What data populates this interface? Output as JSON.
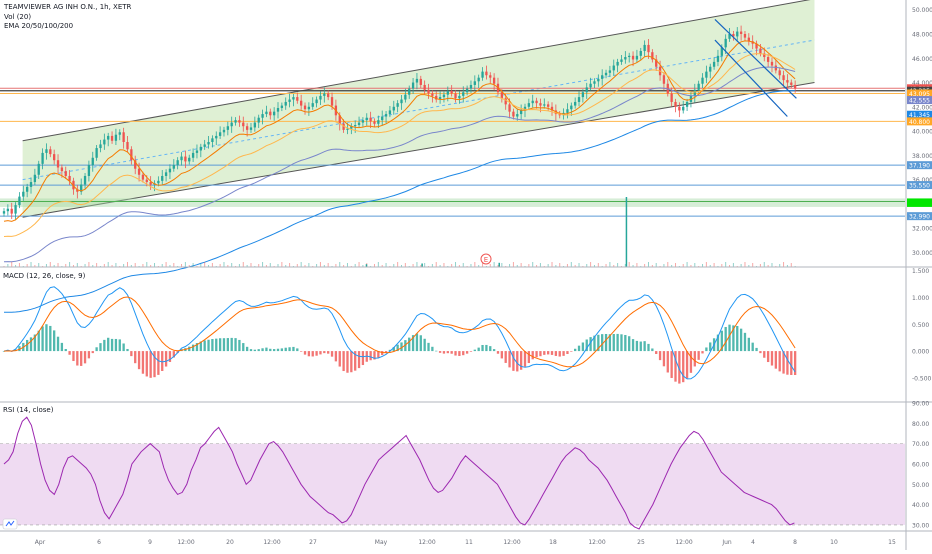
{
  "header": {
    "title": "TEAMVIEWER AG INH O.N., 1h, XETR",
    "vol_label": "Vol (20)",
    "ema_label": "EMA 20/50/100/200"
  },
  "colors": {
    "candle_up": "#26a69a",
    "candle_down": "#ef5350",
    "channel_fill": "#c5e4b0",
    "ema20": "#f57c00",
    "ema50": "#ffb74d",
    "ema100": "#7986cb",
    "ema200": "#1e88e5",
    "channel_mid": "#64b5f6",
    "flag_lines": "#1565c0",
    "hline_red": "#e57373",
    "hline_black": "#424242",
    "hline_orange": "#ffb74d",
    "hline_blue": "#5c9bd6",
    "hline_green": "#4caf50",
    "macd_line": "#2196f3",
    "signal_line": "#ff6d00",
    "rsi_line": "#9c27b0",
    "rsi_band": "#e1bee7"
  },
  "markers": {
    "earnings_glyph": "E"
  },
  "chart_data": [
    {
      "type": "candlestick",
      "name": "price",
      "y_ticks": [
        "50.000",
        "48.000",
        "46.000",
        "44.000",
        "42.000",
        "40.000",
        "38.000",
        "36.000",
        "34.000",
        "32.000",
        "30.000"
      ],
      "ylim": [
        28.8,
        50.8
      ],
      "x_labels": [
        "Apr",
        "6",
        "9",
        "12:00",
        "20",
        "12:00",
        "27",
        "May",
        "12:00",
        "11",
        "12:00",
        "18",
        "12:00",
        "25",
        "12:00",
        "Jun",
        "4",
        "8",
        "10",
        "15"
      ],
      "price_tags": [
        {
          "label": "43.525",
          "value": 43.525,
          "color": "#ef5350"
        },
        {
          "label": "43.325",
          "value": 43.325,
          "color": "#424242"
        },
        {
          "label": "43.095",
          "value": 43.095,
          "color": "#ffa726"
        },
        {
          "label": "42.555",
          "value": 42.555,
          "color": "#7986cb"
        },
        {
          "label": "41.345",
          "value": 41.345,
          "color": "#1e88e5"
        },
        {
          "label": "40.800",
          "value": 40.8,
          "color": "#ffa726"
        },
        {
          "label": "37.190",
          "value": 37.19,
          "color": "#5c9bd6"
        },
        {
          "label": "35.550",
          "value": 35.55,
          "color": "#5c9bd6"
        },
        {
          "label": "32.990",
          "value": 32.99,
          "color": "#5c9bd6"
        }
      ],
      "horizontal_levels": [
        {
          "value": 43.525,
          "kind": "red"
        },
        {
          "value": 43.325,
          "kind": "black"
        },
        {
          "value": 43.095,
          "kind": "orange"
        },
        {
          "value": 40.8,
          "kind": "orange"
        },
        {
          "value": 37.19,
          "kind": "blue"
        },
        {
          "value": 35.55,
          "kind": "blue"
        },
        {
          "value": 34.2,
          "kind": "green"
        },
        {
          "value": 32.99,
          "kind": "blue"
        }
      ],
      "green_zone": [
        33.75,
        34.45
      ],
      "channel": {
        "upper": [
          [
            0.025,
            39.2
          ],
          [
            0.9,
            50.9
          ]
        ],
        "lower": [
          [
            0.025,
            32.9
          ],
          [
            0.9,
            44.0
          ]
        ],
        "mid": [
          [
            0.025,
            36.0
          ],
          [
            0.9,
            47.5
          ]
        ]
      },
      "flag": {
        "upper": [
          [
            0.79,
            49.2
          ],
          [
            0.88,
            42.7
          ]
        ],
        "lower": [
          [
            0.79,
            47.5
          ],
          [
            0.87,
            41.2
          ]
        ]
      },
      "closes": [
        33.4,
        33.6,
        33.2,
        33.9,
        34.6,
        35.0,
        35.4,
        35.8,
        36.4,
        37.3,
        38.2,
        38.5,
        38.1,
        37.6,
        37.0,
        36.7,
        36.3,
        35.9,
        35.2,
        35.0,
        35.6,
        36.3,
        37.2,
        37.8,
        38.6,
        38.9,
        39.3,
        39.6,
        39.2,
        39.7,
        39.9,
        39.1,
        38.5,
        37.6,
        36.9,
        36.4,
        36.0,
        35.8,
        35.6,
        35.7,
        35.9,
        36.3,
        36.6,
        36.9,
        37.2,
        37.6,
        37.9,
        37.5,
        37.8,
        38.2,
        38.4,
        38.7,
        38.9,
        39.1,
        39.4,
        39.6,
        39.9,
        40.1,
        40.4,
        40.7,
        40.9,
        40.7,
        40.4,
        40.1,
        40.3,
        40.7,
        41.1,
        41.4,
        41.6,
        41.3,
        41.6,
        41.9,
        42.1,
        42.4,
        42.6,
        42.8,
        42.5,
        42.1,
        41.8,
        42.0,
        42.3,
        42.6,
        42.9,
        43.1,
        42.8,
        42.1,
        41.3,
        40.6,
        40.1,
        40.2,
        40.4,
        40.5,
        40.7,
        40.9,
        41.1,
        40.8,
        40.6,
        40.9,
        41.2,
        41.4,
        41.7,
        42.0,
        42.3,
        42.6,
        43.0,
        43.5,
        44.0,
        44.3,
        43.8,
        43.4,
        43.1,
        42.9,
        42.6,
        42.8,
        43.0,
        43.3,
        43.1,
        42.7,
        42.9,
        43.2,
        43.5,
        43.8,
        44.1,
        44.4,
        44.9,
        44.6,
        44.4,
        43.9,
        43.2,
        42.7,
        42.2,
        41.6,
        41.2,
        41.4,
        41.7,
        42.0,
        42.3,
        42.5,
        42.3,
        42.1,
        42.2,
        42.0,
        41.7,
        41.4,
        41.3,
        41.5,
        41.8,
        42.1,
        42.4,
        42.8,
        43.2,
        43.6,
        43.9,
        44.1,
        44.3,
        44.6,
        44.8,
        45.0,
        45.4,
        45.7,
        45.9,
        46.1,
        46.2,
        45.9,
        46.2,
        46.6,
        47.1,
        46.5,
        45.9,
        45.3,
        44.6,
        43.9,
        43.1,
        42.4,
        42.0,
        41.7,
        42.0,
        42.4,
        42.9,
        43.4,
        43.9,
        44.4,
        44.9,
        45.3,
        45.7,
        46.2,
        46.9,
        47.6,
        48.0,
        47.8,
        48.2,
        48.0,
        47.7,
        47.4,
        47.2,
        46.8,
        46.4,
        46.1,
        45.7,
        45.4,
        45.0,
        44.6,
        44.2,
        44.0,
        43.8,
        43.5
      ],
      "volume_spikes": [
        {
          "bar_frac": 0.782,
          "height_frac": 1.0
        },
        {
          "bar_frac": 0.622,
          "height_frac": 0.06
        },
        {
          "bar_frac": 0.525,
          "height_frac": 0.05
        },
        {
          "bar_frac": 0.455,
          "height_frac": 0.04
        }
      ]
    },
    {
      "type": "bar",
      "name": "MACD (12, 26, close, 9)",
      "title": "MACD (12, 26, close, 9)",
      "y_ticks": [
        "1.500",
        "1.000",
        "0.500",
        "0.000",
        "-0.500"
      ],
      "ylim": [
        -0.95,
        1.55
      ]
    },
    {
      "type": "line",
      "name": "RSI (14, close)",
      "title": "RSI (14, close)",
      "y_ticks": [
        "90.00",
        "80.00",
        "70.00",
        "60.00",
        "50.00",
        "40.00",
        "30.00"
      ],
      "ylim": [
        27,
        90
      ],
      "band": [
        30,
        70
      ],
      "values": [
        60,
        62,
        66,
        75,
        81,
        83,
        79,
        70,
        60,
        52,
        47,
        45,
        50,
        58,
        63,
        64,
        62,
        60,
        58,
        55,
        50,
        42,
        36,
        33,
        37,
        41,
        45,
        52,
        60,
        63,
        66,
        68,
        70,
        68,
        66,
        58,
        52,
        48,
        45,
        46,
        50,
        57,
        62,
        68,
        70,
        73,
        76,
        78,
        74,
        70,
        66,
        60,
        55,
        50,
        52,
        57,
        62,
        66,
        70,
        71,
        69,
        66,
        62,
        58,
        54,
        50,
        47,
        44,
        42,
        40,
        38,
        36,
        35,
        33,
        31,
        32,
        35,
        40,
        45,
        50,
        54,
        58,
        62,
        64,
        66,
        68,
        70,
        72,
        74,
        70,
        66,
        62,
        57,
        52,
        48,
        46,
        47,
        50,
        53,
        57,
        61,
        64,
        62,
        60,
        58,
        56,
        54,
        52,
        50,
        46,
        42,
        38,
        34,
        31,
        30,
        33,
        37,
        41,
        45,
        49,
        53,
        57,
        61,
        64,
        66,
        68,
        67,
        65,
        62,
        60,
        58,
        55,
        52,
        48,
        44,
        40,
        36,
        31,
        29,
        28,
        32,
        36,
        40,
        45,
        50,
        55,
        60,
        64,
        68,
        71,
        74,
        76,
        75,
        72,
        68,
        64,
        60,
        56,
        54,
        52,
        50,
        48,
        46,
        45,
        44,
        43,
        42,
        41,
        40,
        38,
        35,
        32,
        30,
        31
      ]
    }
  ]
}
